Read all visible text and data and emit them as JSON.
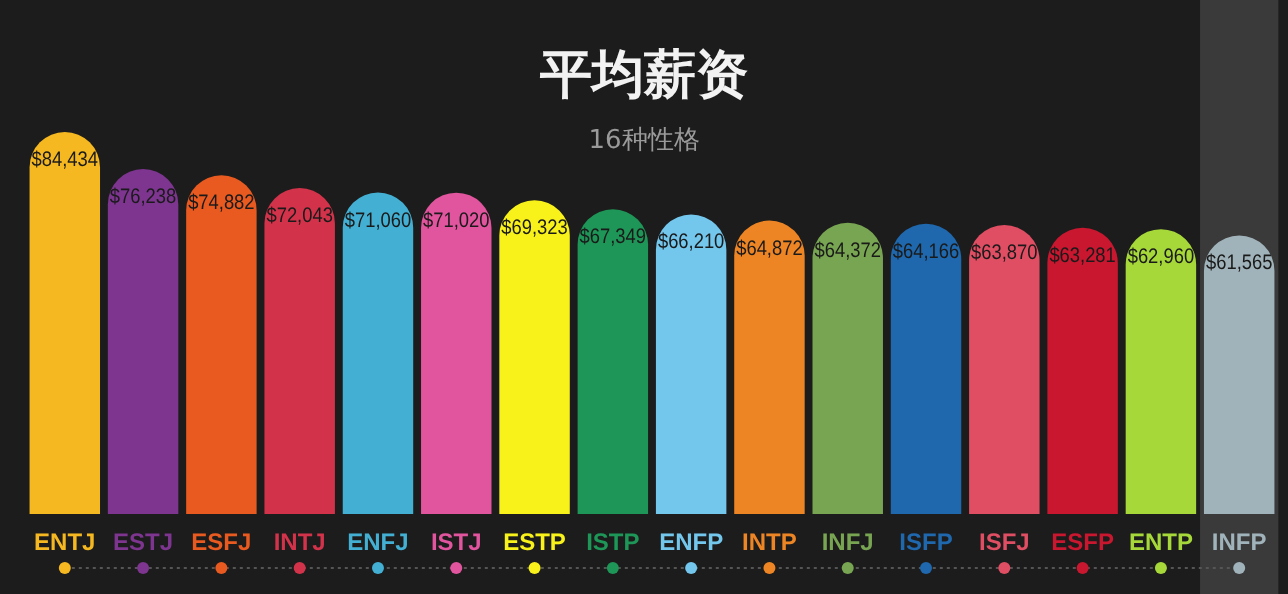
{
  "chart_data": {
    "type": "bar",
    "title": "平均薪资",
    "subtitle": "16种性格",
    "categories": [
      "ENTJ",
      "ESTJ",
      "ESFJ",
      "INTJ",
      "ENFJ",
      "ISTJ",
      "ESTP",
      "ISTP",
      "ENFP",
      "INTP",
      "INFJ",
      "ISFP",
      "ISFJ",
      "ESFP",
      "ENTP",
      "INFP"
    ],
    "values": [
      84434,
      76238,
      74882,
      72043,
      71060,
      71020,
      69323,
      67349,
      66210,
      64872,
      64372,
      64166,
      63870,
      63281,
      62960,
      61565
    ],
    "value_labels": [
      "$84,434",
      "$76,238",
      "$74,882",
      "$72,043",
      "$71,060",
      "$71,020",
      "$69,323",
      "$67,349",
      "$66,210",
      "$64,872",
      "$64,372",
      "$64,166",
      "$63,870",
      "$63,281",
      "$62,960",
      "$61,565"
    ],
    "colors": [
      "#f5b820",
      "#7d3590",
      "#e85a20",
      "#d2334a",
      "#43b0d3",
      "#e0559e",
      "#f8f21a",
      "#1e9657",
      "#73c6ec",
      "#ee8524",
      "#78a552",
      "#1f68ad",
      "#e04e63",
      "#c8172f",
      "#a6d83a",
      "#a1b3ba"
    ],
    "bands": [
      {
        "axis": "x",
        "from": "INFP",
        "to": "INFP",
        "color": "#3a3a3a"
      }
    ]
  }
}
